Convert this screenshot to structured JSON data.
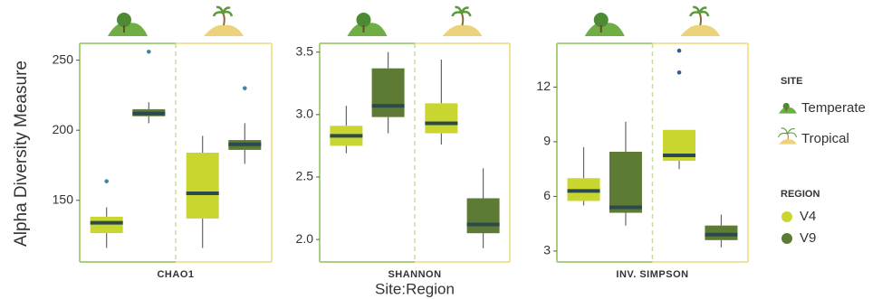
{
  "y_label": "Alpha Diversity Measure",
  "x_label": "Site:Region",
  "legend": {
    "site_title": "SITE",
    "sites": [
      "Temperate",
      "Tropical"
    ],
    "region_title": "REGION",
    "regions": [
      {
        "name": "V4",
        "color": "#c9d62f"
      },
      {
        "name": "V9",
        "color": "#5e7b35"
      }
    ]
  },
  "median_color": "#2c4a4b",
  "chart_data": [
    {
      "type": "box",
      "title": "CHAO1",
      "ylim": [
        106,
        262
      ],
      "yticks": [
        150,
        200,
        250
      ],
      "outlier_color": "#3d86a6",
      "boxes": [
        {
          "whisker_low": 116,
          "q1": 126.6,
          "median": 134,
          "q3": 138.3,
          "whisker_high": 145,
          "outliers": [
            163.6
          ]
        },
        {
          "whisker_low": 205,
          "q1": 210,
          "median": 212,
          "q3": 215,
          "whisker_high": 220,
          "outliers": [
            256
          ]
        },
        {
          "whisker_low": 116,
          "q1": 137,
          "median": 155,
          "q3": 184,
          "whisker_high": 196,
          "outliers": []
        },
        {
          "whisker_low": 176,
          "q1": 186,
          "median": 190,
          "q3": 193,
          "whisker_high": 205,
          "outliers": [
            230
          ]
        }
      ]
    },
    {
      "type": "box",
      "title": "SHANNON",
      "ylim": [
        1.82,
        3.57
      ],
      "yticks": [
        {
          "value": 2,
          "label": "2.0"
        },
        2.5,
        {
          "value": 3,
          "label": "3.0"
        },
        3.5
      ],
      "outlier_color": "#3d86a6",
      "boxes": [
        {
          "whisker_low": 2.69,
          "q1": 2.75,
          "median": 2.83,
          "q3": 2.91,
          "whisker_high": 3.07,
          "outliers": []
        },
        {
          "whisker_low": 2.85,
          "q1": 2.98,
          "median": 3.07,
          "q3": 3.37,
          "whisker_high": 3.5,
          "outliers": []
        },
        {
          "whisker_low": 2.76,
          "q1": 2.85,
          "median": 2.93,
          "q3": 3.09,
          "whisker_high": 3.44,
          "outliers": []
        },
        {
          "whisker_low": 1.93,
          "q1": 2.05,
          "median": 2.12,
          "q3": 2.33,
          "whisker_high": 2.57,
          "outliers": []
        }
      ]
    },
    {
      "type": "box",
      "title": "INV. SIMPSON",
      "ylim": [
        2.4,
        14.4
      ],
      "yticks": [
        3,
        6,
        9,
        12
      ],
      "outlier_color": "#3a5a8a",
      "boxes": [
        {
          "whisker_low": 5.5,
          "q1": 5.75,
          "median": 6.3,
          "q3": 7.0,
          "whisker_high": 8.7,
          "outliers": []
        },
        {
          "whisker_low": 4.4,
          "q1": 5.1,
          "median": 5.4,
          "q3": 8.45,
          "whisker_high": 10.1,
          "outliers": []
        },
        {
          "whisker_low": 7.5,
          "q1": 7.95,
          "median": 8.25,
          "q3": 9.65,
          "whisker_high": 9.65,
          "outliers": [
            14.0,
            12.8
          ]
        },
        {
          "whisker_low": 3.2,
          "q1": 3.6,
          "median": 3.9,
          "q3": 4.4,
          "whisker_high": 5.0,
          "outliers": []
        }
      ]
    }
  ]
}
